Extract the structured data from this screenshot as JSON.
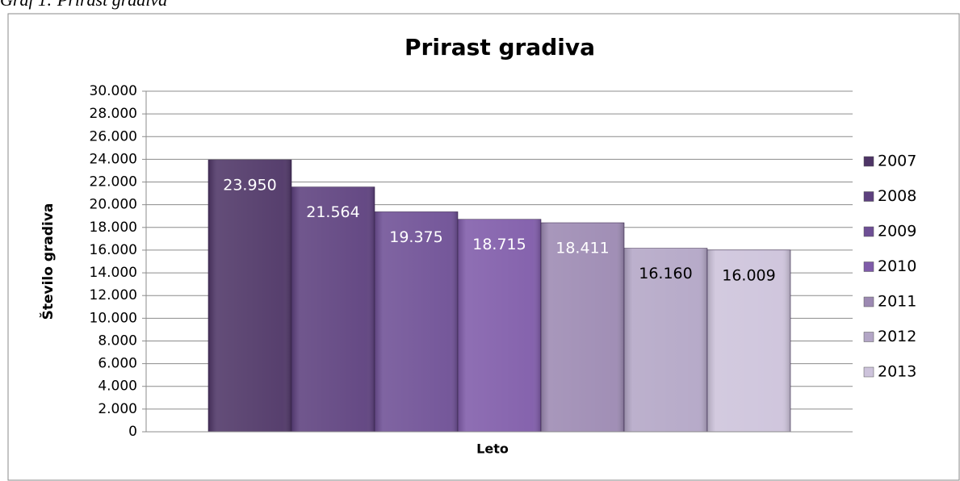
{
  "caption": "Graf 1: Prirast gradiva",
  "chart_data": {
    "type": "bar",
    "title": "Prirast gradiva",
    "x_label": "Leto",
    "y_label": "Število gradiva",
    "categories": [
      null
    ],
    "series": [
      {
        "name": "2007",
        "color": "#4e3566",
        "label_color": "#ffffff",
        "values": [
          23950
        ],
        "value_labels": [
          "23.950"
        ]
      },
      {
        "name": "2008",
        "color": "#5d407e",
        "label_color": "#ffffff",
        "values": [
          21564
        ],
        "value_labels": [
          "21.564"
        ]
      },
      {
        "name": "2009",
        "color": "#6e4f95",
        "label_color": "#ffffff",
        "values": [
          19375
        ],
        "value_labels": [
          "19.375"
        ]
      },
      {
        "name": "2010",
        "color": "#7f5ba9",
        "label_color": "#ffffff",
        "values": [
          18715
        ],
        "value_labels": [
          "18.715"
        ]
      },
      {
        "name": "2011",
        "color": "#9c89b2",
        "label_color": "#ffffff",
        "values": [
          18411
        ],
        "value_labels": [
          "18.411"
        ]
      },
      {
        "name": "2012",
        "color": "#b3a6c6",
        "label_color": "#000000",
        "values": [
          16160
        ],
        "value_labels": [
          "16.160"
        ]
      },
      {
        "name": "2013",
        "color": "#cdc3db",
        "label_color": "#000000",
        "values": [
          16009
        ],
        "value_labels": [
          "16.009"
        ]
      }
    ],
    "ylim": [
      0,
      30000
    ],
    "yticks": [
      0,
      {
        "value": 2000,
        "label": "2.000"
      },
      {
        "value": 4000,
        "label": "4.000"
      },
      {
        "value": 6000,
        "label": "6.000"
      },
      {
        "value": 8000,
        "label": "8.000"
      },
      {
        "value": 10000,
        "label": "10.000"
      },
      {
        "value": 12000,
        "label": "12.000"
      },
      {
        "value": 14000,
        "label": "14.000"
      },
      {
        "value": 16000,
        "label": "16.000"
      },
      {
        "value": 18000,
        "label": "18.000"
      },
      {
        "value": 20000,
        "label": "20.000"
      },
      {
        "value": 22000,
        "label": "22.000"
      },
      {
        "value": 24000,
        "label": "24.000"
      },
      {
        "value": 26000,
        "label": "26.000"
      },
      {
        "value": 28000,
        "label": "28.000"
      },
      {
        "value": 30000,
        "label": "30.000"
      }
    ],
    "grid": true,
    "legend": "right"
  }
}
